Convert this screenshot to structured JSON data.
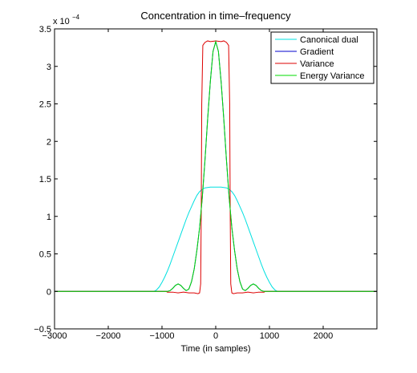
{
  "chart_data": {
    "type": "line",
    "title": "Concentration in time–frequency",
    "xlabel": "Time (in samples)",
    "ylabel": "",
    "y_multiplier": "x 10",
    "y_multiplier_exp": "−4",
    "xlim": [
      -3000,
      3000
    ],
    "ylim": [
      -0.5,
      3.5
    ],
    "xticks": [
      -3000,
      -2000,
      -1000,
      0,
      1000,
      2000
    ],
    "xtick_labels": [
      "−3000",
      "−2000",
      "−1000",
      "0",
      "1000",
      "2000"
    ],
    "yticks": [
      -0.5,
      0,
      0.5,
      1,
      1.5,
      2,
      2.5,
      3,
      3.5
    ],
    "ytick_labels": [
      "−0.5",
      "0",
      "0.5",
      "1",
      "1.5",
      "2",
      "2.5",
      "3",
      "3.5"
    ],
    "grid": false,
    "legend_position": "top-right",
    "series": [
      {
        "name": "Canonical dual",
        "color": "#00e0e0",
        "x": [
          -3000,
          -1150,
          -1100,
          -1050,
          -1000,
          -950,
          -900,
          -850,
          -800,
          -750,
          -700,
          -650,
          -600,
          -550,
          -500,
          -450,
          -400,
          -350,
          -300,
          -250,
          -200,
          -100,
          0,
          100,
          200,
          250,
          300,
          350,
          400,
          450,
          500,
          550,
          600,
          650,
          700,
          750,
          800,
          850,
          900,
          950,
          1000,
          1050,
          1100,
          1150,
          3000
        ],
        "y": [
          0,
          0,
          0.02,
          0.06,
          0.12,
          0.19,
          0.27,
          0.36,
          0.46,
          0.56,
          0.66,
          0.76,
          0.86,
          0.96,
          1.05,
          1.13,
          1.21,
          1.28,
          1.33,
          1.36,
          1.38,
          1.39,
          1.39,
          1.39,
          1.38,
          1.36,
          1.33,
          1.28,
          1.21,
          1.13,
          1.05,
          0.96,
          0.86,
          0.76,
          0.66,
          0.56,
          0.46,
          0.36,
          0.27,
          0.19,
          0.12,
          0.06,
          0.02,
          0,
          0
        ]
      },
      {
        "name": "Gradient",
        "color": "#0000cc",
        "x": [
          -3000,
          -900,
          -850,
          -800,
          -750,
          -700,
          -650,
          -600,
          -550,
          -500,
          -450,
          -400,
          -350,
          -300,
          -250,
          -200,
          -150,
          -100,
          -50,
          0,
          50,
          100,
          150,
          200,
          250,
          300,
          350,
          400,
          450,
          500,
          550,
          600,
          650,
          700,
          750,
          800,
          850,
          900,
          3000
        ],
        "y": [
          0,
          0,
          0.01,
          0.04,
          0.08,
          0.1,
          0.08,
          0.04,
          0.01,
          0.03,
          0.13,
          0.3,
          0.55,
          0.85,
          1.25,
          1.75,
          2.3,
          2.8,
          3.2,
          3.33,
          3.2,
          2.8,
          2.3,
          1.75,
          1.25,
          0.85,
          0.55,
          0.3,
          0.13,
          0.03,
          0.01,
          0.04,
          0.08,
          0.1,
          0.08,
          0.04,
          0.01,
          0,
          0
        ]
      },
      {
        "name": "Variance",
        "color": "#dd0000",
        "x": [
          -3000,
          -920,
          -900,
          -800,
          -700,
          -600,
          -500,
          -400,
          -330,
          -300,
          -280,
          -270,
          -260,
          -240,
          -200,
          -150,
          -100,
          0,
          100,
          150,
          200,
          240,
          260,
          270,
          280,
          300,
          330,
          400,
          500,
          600,
          700,
          800,
          900,
          920,
          3000
        ],
        "y": [
          0,
          0,
          -0.01,
          -0.01,
          -0.02,
          -0.01,
          -0.02,
          -0.02,
          -0.03,
          -0.02,
          0.1,
          1.0,
          2.5,
          3.28,
          3.32,
          3.34,
          3.33,
          3.34,
          3.33,
          3.34,
          3.32,
          3.28,
          2.5,
          1.0,
          0.1,
          -0.02,
          -0.03,
          -0.02,
          -0.02,
          -0.01,
          -0.02,
          -0.01,
          -0.01,
          0,
          0
        ]
      },
      {
        "name": "Energy Variance",
        "color": "#00dd00",
        "x": [
          -3000,
          -900,
          -850,
          -800,
          -750,
          -700,
          -650,
          -600,
          -550,
          -500,
          -450,
          -400,
          -350,
          -300,
          -250,
          -200,
          -150,
          -100,
          -50,
          0,
          50,
          100,
          150,
          200,
          250,
          300,
          350,
          400,
          450,
          500,
          550,
          600,
          650,
          700,
          750,
          800,
          850,
          900,
          3000
        ],
        "y": [
          0,
          0,
          0.01,
          0.04,
          0.08,
          0.1,
          0.08,
          0.04,
          0.01,
          0.03,
          0.13,
          0.3,
          0.55,
          0.85,
          1.25,
          1.75,
          2.3,
          2.8,
          3.2,
          3.33,
          3.2,
          2.8,
          2.3,
          1.75,
          1.25,
          0.85,
          0.55,
          0.3,
          0.13,
          0.03,
          0.01,
          0.04,
          0.08,
          0.1,
          0.08,
          0.04,
          0.01,
          0,
          0
        ]
      }
    ]
  }
}
